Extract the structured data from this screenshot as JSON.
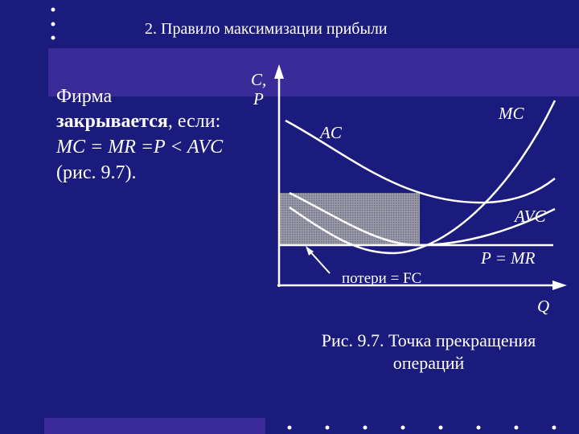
{
  "header": {
    "title": "2. Правило максимизации прибыли"
  },
  "text": {
    "line1": "Фирма",
    "bold": "закрывается",
    "rest": ", если:",
    "line3": "MC = MR =P < AVC",
    "line4": "(рис. 9.7)."
  },
  "diagram": {
    "y_axis_label_1": "C,",
    "y_axis_label_2": "P",
    "x_axis_label": "Q",
    "curves": {
      "ac": "AC",
      "mc": "MC",
      "avc": "AVC",
      "price": "P = MR"
    },
    "loss_label": "потери = FC"
  },
  "caption": {
    "line1": "Рис. 9.7. Точка прекращения",
    "line2": "операций"
  }
}
